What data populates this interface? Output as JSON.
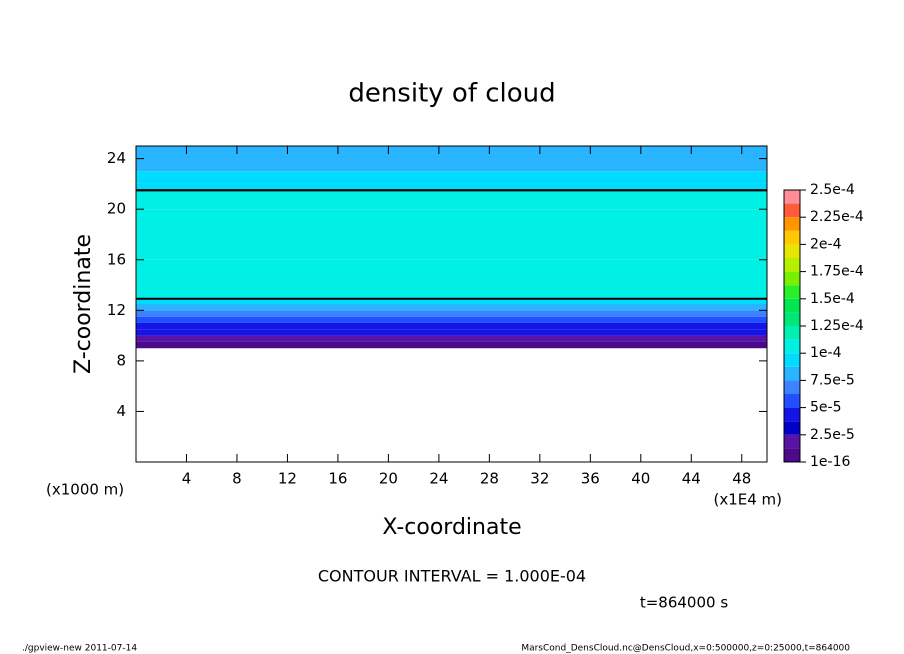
{
  "chart_data": {
    "type": "contour",
    "title": "density of cloud",
    "xlabel": "X-coordinate",
    "ylabel": "Z-coordinate",
    "x_unit": "(x1E4 m)",
    "y_unit": "(x1000 m)",
    "xlim": [
      0,
      50
    ],
    "xticks": [
      4,
      8,
      12,
      16,
      20,
      24,
      28,
      32,
      36,
      40,
      44,
      48
    ],
    "ylim": [
      0,
      25
    ],
    "yticks": [
      4,
      8,
      12,
      16,
      20,
      24
    ],
    "profile": {
      "z": [
        9,
        9.5,
        10,
        10.5,
        11,
        11.5,
        12,
        12.5,
        13,
        16,
        20,
        21.5,
        22,
        23
      ],
      "values": [
        1e-05,
        2.5e-05,
        4e-05,
        5e-05,
        6e-05,
        7e-05,
        8e-05,
        9e-05,
        0.000102,
        0.00011,
        0.000105,
        0.0001,
        9e-05,
        8.5e-05
      ]
    },
    "contour_levels": [
      0.0001
    ],
    "colorbar": {
      "lim": [
        1e-16,
        0.00025
      ],
      "ticks": [
        {
          "value": 1e-16,
          "label": "1e-16"
        },
        {
          "value": 2.5e-05,
          "label": "2.5e-5"
        },
        {
          "value": 5e-05,
          "label": "5e-5"
        },
        {
          "value": 7.5e-05,
          "label": "7.5e-5"
        },
        {
          "value": 0.0001,
          "label": "1e-4"
        },
        {
          "value": 0.000125,
          "label": "1.25e-4"
        },
        {
          "value": 0.00015,
          "label": "1.5e-4"
        },
        {
          "value": 0.000175,
          "label": "1.75e-4"
        },
        {
          "value": 0.0002,
          "label": "2e-4"
        },
        {
          "value": 0.000225,
          "label": "2.25e-4"
        },
        {
          "value": 0.00025,
          "label": "2.5e-4"
        }
      ],
      "colors": [
        "#4b0a8c",
        "#5a14a5",
        "#0000c8",
        "#1414e6",
        "#2050ff",
        "#3c82ff",
        "#28b4ff",
        "#00dcff",
        "#00f0e6",
        "#00f0b4",
        "#00e678",
        "#00e650",
        "#28f028",
        "#78f000",
        "#b4f000",
        "#e6e600",
        "#ffc800",
        "#ff9600",
        "#ff5a3c",
        "#ff8c96"
      ]
    },
    "contour_interval": "CONTOUR INTERVAL = 1.000E-04",
    "time": "t=864000 s",
    "footer_left": "./gpview-new   2011-07-14",
    "footer_right": "MarsCond_DensCloud.nc@DensCloud,x=0:500000,z=0:25000,t=864000"
  }
}
